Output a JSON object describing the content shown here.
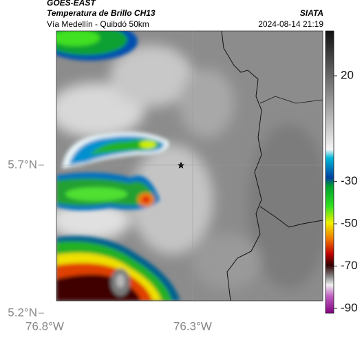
{
  "header": {
    "title": "GOES-EAST",
    "subtitle": "Temperatura de Brillo CH13",
    "route": "Vía Medellín - Quibdó 50km",
    "source": "SIATA",
    "timestamp": "2024-08-14 21:19"
  },
  "map": {
    "lon_range": [
      -76.8,
      -75.86
    ],
    "lat_range": [
      5.2,
      6.153
    ],
    "lon_ticks": [
      {
        "value": -76.8,
        "label": "76.8°W"
      },
      {
        "value": -76.3,
        "label": "76.3°W"
      }
    ],
    "lat_ticks": [
      {
        "value": 5.7,
        "label": "5.7°N"
      },
      {
        "value": 5.2,
        "label": "5.2°N"
      }
    ],
    "grid": true
  },
  "colorbar": {
    "range": [
      -92.3,
      41.2
    ],
    "ticks": [
      20,
      -30,
      -50,
      -70,
      -90
    ]
  }
}
